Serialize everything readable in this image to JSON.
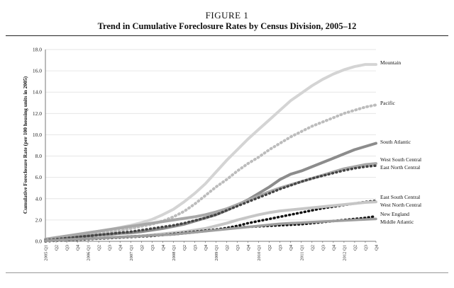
{
  "figure_label": "FIGURE 1",
  "chart_data": {
    "type": "line",
    "title": "Trend in Cumulative Foreclosure Rates by Census Division, 2005–12",
    "ylabel": "Cumulative Foreclosure Rate (per 100 housing units in 2005)",
    "xlabel": "",
    "ylim": [
      0,
      18
    ],
    "yticks": [
      "0.0",
      "2.0",
      "4.0",
      "6.0",
      "8.0",
      "10.0",
      "12.0",
      "14.0",
      "16.0",
      "18.0"
    ],
    "grid": true,
    "x": [
      "2005 Q1",
      "Q2",
      "Q3",
      "Q4",
      "2006 Q1",
      "Q2",
      "Q3",
      "Q4",
      "2007 Q1",
      "Q2",
      "Q3",
      "Q4",
      "2008 Q1",
      "Q2",
      "Q3",
      "Q4",
      "2009 Q1",
      "Q2",
      "Q3",
      "Q4",
      "2010 Q1",
      "Q2",
      "Q3",
      "Q4",
      "2011 Q1",
      "Q2",
      "Q3",
      "Q4",
      "2012 Q1",
      "Q2",
      "Q3",
      "Q4"
    ],
    "series": [
      {
        "name": "Mountain",
        "color": "#d4d4d4",
        "width": 4,
        "dash": "",
        "values": [
          0.2,
          0.35,
          0.5,
          0.65,
          0.8,
          0.95,
          1.1,
          1.3,
          1.5,
          1.75,
          2.05,
          2.5,
          3.0,
          3.7,
          4.5,
          5.4,
          6.5,
          7.6,
          8.6,
          9.6,
          10.5,
          11.4,
          12.3,
          13.2,
          13.9,
          14.6,
          15.2,
          15.7,
          16.1,
          16.4,
          16.6,
          16.6
        ]
      },
      {
        "name": "Pacific",
        "color": "#bcbcbc",
        "width": 4,
        "dash": "1,4.5",
        "values": [
          0.1,
          0.25,
          0.35,
          0.5,
          0.6,
          0.7,
          0.85,
          1.0,
          1.2,
          1.4,
          1.6,
          1.9,
          2.3,
          2.8,
          3.5,
          4.3,
          5.1,
          5.8,
          6.6,
          7.3,
          7.9,
          8.6,
          9.2,
          9.8,
          10.3,
          10.8,
          11.2,
          11.6,
          12.0,
          12.3,
          12.6,
          12.8
        ]
      },
      {
        "name": "South Atlantic",
        "color": "#8c8c8c",
        "width": 4,
        "dash": "",
        "values": [
          0.1,
          0.2,
          0.3,
          0.4,
          0.5,
          0.6,
          0.65,
          0.75,
          0.8,
          0.9,
          1.05,
          1.2,
          1.4,
          1.6,
          1.9,
          2.2,
          2.5,
          2.9,
          3.4,
          3.9,
          4.5,
          5.1,
          5.8,
          6.3,
          6.6,
          7.0,
          7.4,
          7.8,
          8.2,
          8.6,
          8.9,
          9.2
        ]
      },
      {
        "name": "West South Central",
        "color": "#a8a8a8",
        "width": 4,
        "dash": "",
        "values": [
          0.2,
          0.35,
          0.5,
          0.65,
          0.8,
          0.95,
          1.1,
          1.25,
          1.4,
          1.55,
          1.7,
          1.85,
          2.0,
          2.15,
          2.3,
          2.5,
          2.75,
          3.05,
          3.45,
          3.85,
          4.25,
          4.65,
          5.0,
          5.3,
          5.6,
          5.9,
          6.2,
          6.5,
          6.8,
          7.0,
          7.2,
          7.3
        ]
      },
      {
        "name": "East North Central",
        "color": "#444444",
        "width": 3.5,
        "dash": "1,4.5",
        "values": [
          0.1,
          0.2,
          0.3,
          0.4,
          0.5,
          0.6,
          0.7,
          0.8,
          0.9,
          1.05,
          1.2,
          1.35,
          1.5,
          1.7,
          1.95,
          2.2,
          2.5,
          2.9,
          3.3,
          3.7,
          4.1,
          4.5,
          4.9,
          5.25,
          5.6,
          5.9,
          6.15,
          6.4,
          6.65,
          6.85,
          7.0,
          7.1
        ]
      },
      {
        "name": "East South Central",
        "color": "#111111",
        "width": 3.5,
        "dash": "1,4.5",
        "values": [
          0.0,
          0.05,
          0.1,
          0.15,
          0.2,
          0.25,
          0.3,
          0.35,
          0.4,
          0.45,
          0.5,
          0.6,
          0.65,
          0.75,
          0.85,
          0.95,
          1.1,
          1.25,
          1.45,
          1.7,
          1.9,
          2.1,
          2.3,
          2.5,
          2.7,
          2.9,
          3.1,
          3.25,
          3.4,
          3.55,
          3.7,
          3.8
        ]
      },
      {
        "name": "West North Central",
        "color": "#c6c6c6",
        "width": 4,
        "dash": "",
        "values": [
          0.05,
          0.1,
          0.15,
          0.2,
          0.25,
          0.3,
          0.35,
          0.4,
          0.45,
          0.5,
          0.6,
          0.7,
          0.8,
          0.9,
          1.05,
          1.2,
          1.45,
          1.7,
          2.0,
          2.25,
          2.5,
          2.7,
          2.85,
          2.95,
          3.05,
          3.15,
          3.25,
          3.35,
          3.45,
          3.55,
          3.65,
          3.7
        ]
      },
      {
        "name": "New England",
        "color": "#111111",
        "width": 3.5,
        "dash": "1,4.5",
        "values": [
          0.05,
          0.1,
          0.15,
          0.2,
          0.25,
          0.3,
          0.35,
          0.4,
          0.45,
          0.5,
          0.55,
          0.6,
          0.7,
          0.8,
          0.9,
          1.0,
          1.1,
          1.2,
          1.3,
          1.35,
          1.4,
          1.45,
          1.5,
          1.55,
          1.6,
          1.7,
          1.8,
          1.9,
          2.0,
          2.1,
          2.2,
          2.35
        ]
      },
      {
        "name": "Middle Atlantic",
        "color": "#9e9e9e",
        "width": 3.5,
        "dash": "",
        "values": [
          0.05,
          0.1,
          0.15,
          0.2,
          0.25,
          0.3,
          0.35,
          0.4,
          0.45,
          0.5,
          0.55,
          0.6,
          0.65,
          0.75,
          0.85,
          0.95,
          1.05,
          1.15,
          1.25,
          1.35,
          1.45,
          1.55,
          1.65,
          1.7,
          1.75,
          1.8,
          1.85,
          1.9,
          1.95,
          2.0,
          2.05,
          2.1
        ]
      }
    ],
    "line_labels": [
      "Mountain",
      "Pacific",
      "South Atlantic",
      "West South Central",
      "East North Central",
      "East South Central",
      "West North Central",
      "New England",
      "Middle Atlantic"
    ]
  }
}
